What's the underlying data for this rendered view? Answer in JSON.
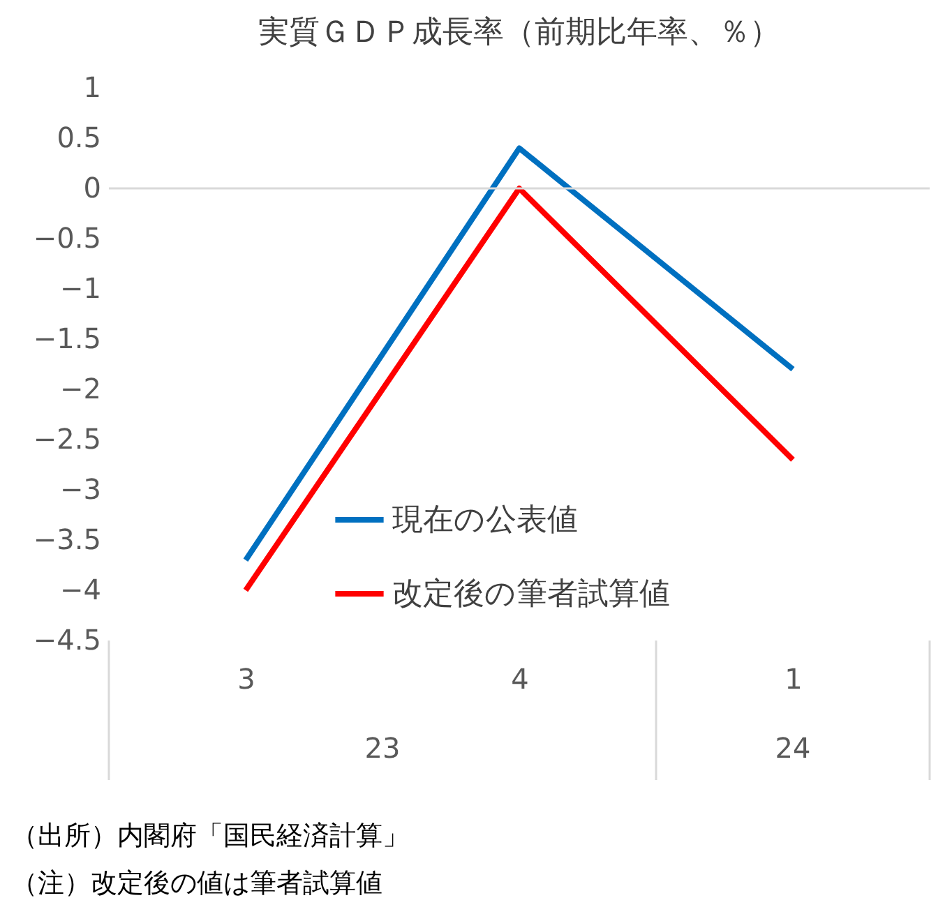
{
  "chart_data": {
    "type": "line",
    "title": "実質ＧＤＰ成長率（前期比年率、％）",
    "categories": [
      "3",
      "4",
      "1"
    ],
    "series": [
      {
        "name": "現在の公表値",
        "color": "#0070c0",
        "values": [
          -3.7,
          0.4,
          -1.8
        ]
      },
      {
        "name": "改定後の筆者試算値",
        "color": "#ff0000",
        "values": [
          -4.0,
          0.0,
          -2.7
        ]
      }
    ],
    "ylim": [
      -4.5,
      1
    ],
    "yticks": [
      1,
      0.5,
      0,
      -0.5,
      -1,
      -1.5,
      -2,
      -2.5,
      -3,
      -3.5,
      -4,
      -4.5
    ],
    "ref_lines": [
      {
        "axis": "y",
        "value": 0,
        "color": "#d9d9d9"
      }
    ],
    "annotations": [
      "23",
      "24",
      "（出所）内閣府「国民経済計算」",
      "（注）改定後の値は筆者試算値"
    ],
    "grid": false,
    "legend": "bottom",
    "marker": "none",
    "line_style": "solid"
  }
}
